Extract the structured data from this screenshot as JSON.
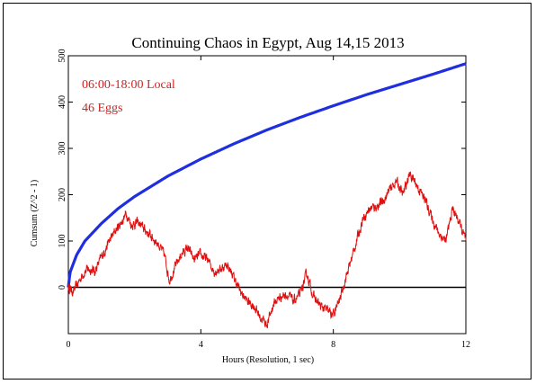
{
  "chart_data": {
    "type": "line",
    "title": "Continuing Chaos in Egypt, Aug 14,15 2013",
    "xlabel": "Hours (Resolution, 1 sec)",
    "ylabel": "Cumsum (Z^2 - 1)",
    "xlim": [
      0,
      12
    ],
    "ylim": [
      -100,
      500
    ],
    "x_ticks": [
      "0",
      "4",
      "8",
      "12"
    ],
    "y_ticks": [
      "0",
      "100",
      "200",
      "300",
      "400",
      "500"
    ],
    "annotations": [
      "06:00-18:00 Local",
      "46 Eggs"
    ],
    "grid": false,
    "colors": {
      "envelope": "#1f2fe0",
      "cumsum": "#e01010",
      "baseline": "#000000"
    },
    "series": [
      {
        "role": "probability envelope",
        "style": "smooth",
        "x": [
          0,
          0.05,
          0.25,
          0.5,
          1,
          1.5,
          2,
          3,
          4,
          5,
          6,
          7,
          8,
          9,
          10,
          11,
          12
        ],
        "y": [
          0,
          32,
          70,
          100,
          138,
          170,
          196,
          240,
          277,
          310,
          340,
          367,
          392,
          416,
          438,
          460,
          483
        ]
      },
      {
        "role": "cumulative deviation",
        "style": "noisy",
        "x": [
          0,
          0.15,
          0.3,
          0.45,
          0.6,
          0.8,
          1.0,
          1.2,
          1.4,
          1.6,
          1.75,
          1.9,
          2.1,
          2.3,
          2.5,
          2.7,
          2.9,
          3.05,
          3.2,
          3.4,
          3.6,
          3.8,
          4.0,
          4.2,
          4.4,
          4.6,
          4.8,
          5.0,
          5.2,
          5.4,
          5.6,
          5.8,
          6.0,
          6.2,
          6.4,
          6.6,
          6.8,
          7.0,
          7.2,
          7.4,
          7.6,
          7.8,
          8.0,
          8.2,
          8.35,
          8.5,
          8.7,
          8.9,
          9.1,
          9.3,
          9.5,
          9.7,
          9.9,
          10.1,
          10.3,
          10.45,
          10.6,
          10.8,
          11.0,
          11.2,
          11.4,
          11.6,
          11.8,
          12.0
        ],
        "y": [
          0,
          -10,
          10,
          30,
          40,
          35,
          65,
          95,
          120,
          140,
          160,
          135,
          140,
          125,
          110,
          95,
          70,
          15,
          40,
          70,
          85,
          60,
          70,
          60,
          35,
          40,
          50,
          20,
          -10,
          -30,
          -40,
          -65,
          -80,
          -35,
          -20,
          -15,
          -30,
          -15,
          30,
          -20,
          -40,
          -50,
          -60,
          -25,
          15,
          50,
          100,
          150,
          170,
          175,
          185,
          210,
          230,
          200,
          245,
          230,
          210,
          185,
          145,
          115,
          100,
          170,
          140,
          100
        ]
      }
    ]
  }
}
